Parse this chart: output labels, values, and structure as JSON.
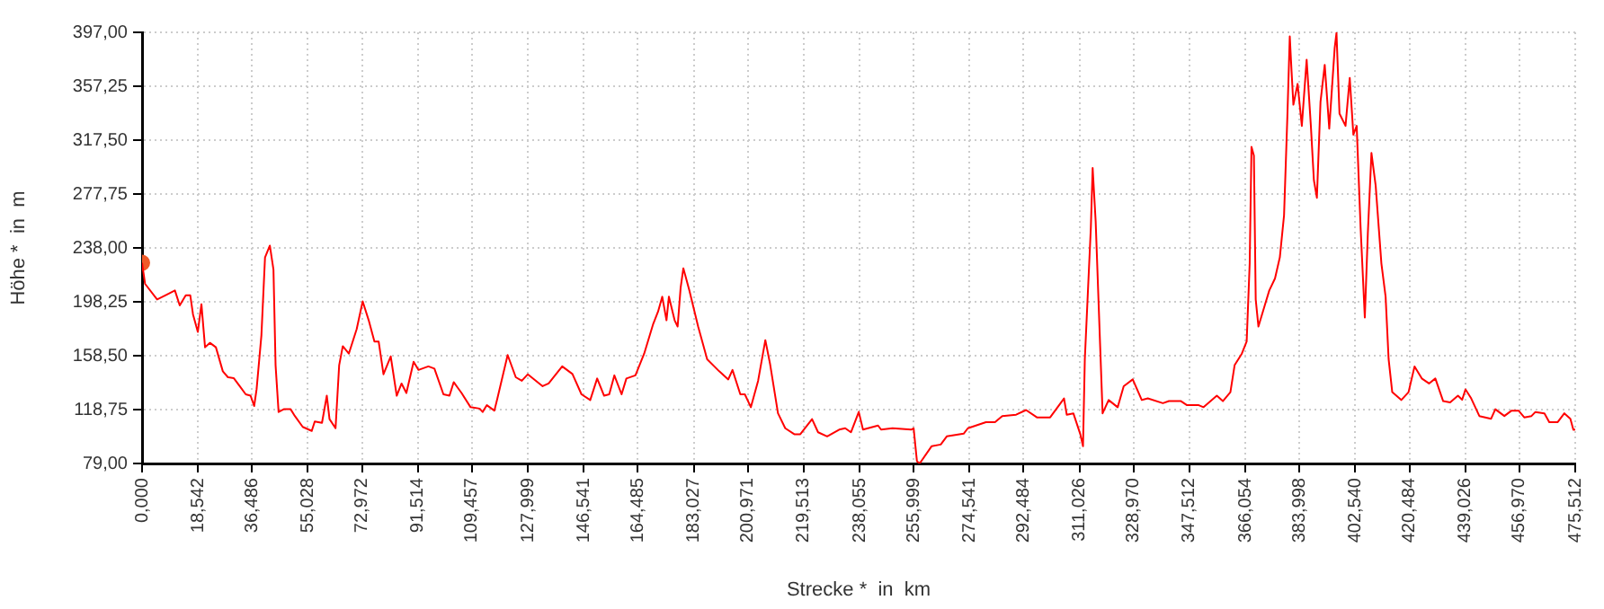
{
  "chart_data": {
    "type": "line",
    "xlabel": "Strecke *  in  km",
    "ylabel": "Höhe *  in  m",
    "xlim": [
      0,
      475.512
    ],
    "xticks": [
      {
        "value": 0,
        "label": "0,000"
      },
      {
        "value": 18.542,
        "label": "18,542"
      },
      {
        "value": 36.486,
        "label": "36,486"
      },
      {
        "value": 55.028,
        "label": "55,028"
      },
      {
        "value": 72.972,
        "label": "72,972"
      },
      {
        "value": 91.514,
        "label": "91,514"
      },
      {
        "value": 109.457,
        "label": "109,457"
      },
      {
        "value": 127.999,
        "label": "127,999"
      },
      {
        "value": 146.541,
        "label": "146,541"
      },
      {
        "value": 164.485,
        "label": "164,485"
      },
      {
        "value": 183.027,
        "label": "183,027"
      },
      {
        "value": 200.971,
        "label": "200,971"
      },
      {
        "value": 219.513,
        "label": "219,513"
      },
      {
        "value": 238.055,
        "label": "238,055"
      },
      {
        "value": 255.999,
        "label": "255,999"
      },
      {
        "value": 274.541,
        "label": "274,541"
      },
      {
        "value": 292.484,
        "label": "292,484"
      },
      {
        "value": 311.026,
        "label": "311,026"
      },
      {
        "value": 328.97,
        "label": "328,970"
      },
      {
        "value": 347.512,
        "label": "347,512"
      },
      {
        "value": 366.054,
        "label": "366,054"
      },
      {
        "value": 383.998,
        "label": "383,998"
      },
      {
        "value": 402.54,
        "label": "402,540"
      },
      {
        "value": 420.484,
        "label": "420,484"
      },
      {
        "value": 439.026,
        "label": "439,026"
      },
      {
        "value": 456.97,
        "label": "456,970"
      },
      {
        "value": 475.512,
        "label": "475,512"
      }
    ],
    "ylim": [
      79,
      397
    ],
    "yticks": [
      {
        "value": 79,
        "label": "79,00"
      },
      {
        "value": 118.75,
        "label": "118,75"
      },
      {
        "value": 158.5,
        "label": "158,50"
      },
      {
        "value": 198.25,
        "label": "198,25"
      },
      {
        "value": 238,
        "label": "238,00"
      },
      {
        "value": 277.75,
        "label": "277,75"
      },
      {
        "value": 317.5,
        "label": "317,50"
      },
      {
        "value": 357.25,
        "label": "357,25"
      },
      {
        "value": 397,
        "label": "397,00"
      }
    ],
    "grid": true,
    "legend": false,
    "line_style": "solid",
    "series": [
      {
        "color": "#ff0000",
        "x": [
          0,
          1,
          5,
          7.7,
          10.9,
          12.5,
          14.5,
          16,
          16.9,
          18.5,
          19.7,
          20.9,
          22.5,
          24.5,
          26.8,
          28.5,
          30.4,
          32.4,
          34.4,
          36,
          37.2,
          38,
          39.6,
          40.8,
          42.4,
          43.6,
          44.3,
          45.3,
          47,
          49.3,
          50.7,
          53.3,
          56.3,
          57.3,
          59.7,
          61.3,
          62.2,
          64.2,
          65.4,
          66.6,
          68.6,
          71.2,
          73.2,
          75.2,
          77.1,
          78.5,
          80.1,
          82.5,
          84.5,
          86.1,
          87.7,
          90.1,
          91.7,
          95,
          97,
          100,
          102,
          103.4,
          106,
          109,
          112,
          113,
          114.4,
          116.9,
          117.9,
          121.3,
          124,
          126,
          128,
          132.9,
          134.9,
          139.4,
          142.8,
          145.8,
          148.7,
          151,
          153.3,
          155,
          156.7,
          159.1,
          160.7,
          163.7,
          166.6,
          169.6,
          171.2,
          172.6,
          174,
          174.8,
          176.7,
          177.7,
          178.7,
          179.6,
          181.6,
          184.5,
          187.5,
          191.5,
          194.5,
          195.9,
          198.5,
          200,
          202,
          204.4,
          206.8,
          208.4,
          211,
          213.4,
          216.4,
          218.4,
          222.3,
          224.3,
          227.3,
          231.3,
          233.3,
          235.2,
          237.8,
          239.2,
          244.2,
          245.2,
          249,
          255.2,
          256,
          257.1,
          258,
          262,
          265,
          267,
          272.6,
          274,
          280,
          283,
          285.4,
          290,
          293.3,
          296.9,
          301.3,
          305.9,
          306.8,
          309,
          311.3,
          312.2,
          312.8,
          313.8,
          314.8,
          315.4,
          316.4,
          317.4,
          317.9,
          318.7,
          320.7,
          323.7,
          325.7,
          328.7,
          331.7,
          333.7,
          338.7,
          340.7,
          344.7,
          346.7,
          350.6,
          352.2,
          356.6,
          358.6,
          361.1,
          362.5,
          364.9,
          366.5,
          367.5,
          368.1,
          368.9,
          369.5,
          370.4,
          372.5,
          374,
          375.9,
          377.5,
          378.9,
          380,
          380.8,
          381.4,
          382,
          383.4,
          384.8,
          386.4,
          387.8,
          388.8,
          389.8,
          391,
          392.4,
          393.9,
          395.7,
          396.3,
          397.3,
          399.3,
          400.7,
          401.9,
          403,
          404.3,
          405.7,
          406.7,
          407.9,
          409.3,
          411.2,
          412.6,
          413.6,
          414.8,
          417.8,
          420.2,
          422.2,
          424.6,
          427,
          429.1,
          431.7,
          434,
          436.6,
          438,
          439.1,
          441,
          443.7,
          447.6,
          449,
          452,
          454.4,
          456.7,
          458.6,
          461,
          462.3,
          465.3,
          466.9,
          469.7,
          471.9,
          473.9,
          474.9,
          475.512
        ],
        "values": [
          227,
          211.5,
          200,
          203,
          206.6,
          195.6,
          203,
          203,
          189,
          176,
          196.5,
          164.7,
          168,
          164.7,
          147,
          142.6,
          142,
          136,
          130,
          129,
          121.4,
          133.7,
          173.5,
          231,
          239.7,
          222,
          151.5,
          117,
          119,
          119,
          114,
          106,
          103,
          110,
          109,
          129,
          111.7,
          105,
          151.5,
          165.5,
          160,
          178,
          198.6,
          184.6,
          169,
          169,
          144.8,
          158,
          129,
          138,
          131,
          154,
          148,
          150.6,
          149,
          130,
          129,
          139,
          131,
          120.5,
          119.5,
          117,
          122,
          118,
          127,
          159,
          142.6,
          140,
          144.8,
          136,
          138,
          150.6,
          145,
          130,
          125.8,
          141.7,
          129,
          130,
          144,
          130,
          141.7,
          144,
          160,
          182,
          191,
          202,
          184.6,
          202,
          184.6,
          180,
          208.8,
          223,
          206.6,
          180,
          155.9,
          147,
          141,
          148,
          130,
          130,
          120.5,
          140,
          170,
          152,
          116,
          105,
          100.6,
          100.6,
          111.7,
          102,
          99,
          104,
          105,
          102,
          117,
          104,
          107,
          104,
          105,
          104,
          105,
          80.7,
          79,
          91.8,
          93,
          99,
          101,
          105,
          109.5,
          109.5,
          114,
          115,
          118.4,
          113,
          113,
          127,
          115,
          116,
          100.6,
          91.8,
          155.9,
          204.5,
          253,
          297,
          257.5,
          195.6,
          164.7,
          116,
          125.8,
          120.5,
          136,
          141,
          125.8,
          127,
          123.5,
          125,
          125,
          122,
          122,
          120.5,
          129,
          125,
          131.6,
          151.5,
          160,
          169,
          226.5,
          312.6,
          306,
          200,
          180,
          195.6,
          206.6,
          215.5,
          231,
          262,
          334.7,
          394,
          368,
          343.6,
          359,
          328,
          376.8,
          328,
          288,
          275,
          345.8,
          373,
          326,
          385.5,
          396.6,
          337,
          328,
          363.4,
          321.5,
          328,
          253,
          186.7,
          248.6,
          308,
          284,
          226.5,
          202,
          155.9,
          131.6,
          125.8,
          131.6,
          150.6,
          141.7,
          138,
          141.7,
          125,
          124,
          129,
          126,
          133.7,
          127,
          114,
          112,
          119,
          114,
          118,
          118,
          113,
          114,
          117,
          116,
          109.5,
          109.5,
          116,
          112,
          103.8,
          104
        ]
      },
      {
        "type": "scatter",
        "color": "#f05a28",
        "x": [
          0
        ],
        "values": [
          227
        ]
      }
    ]
  }
}
